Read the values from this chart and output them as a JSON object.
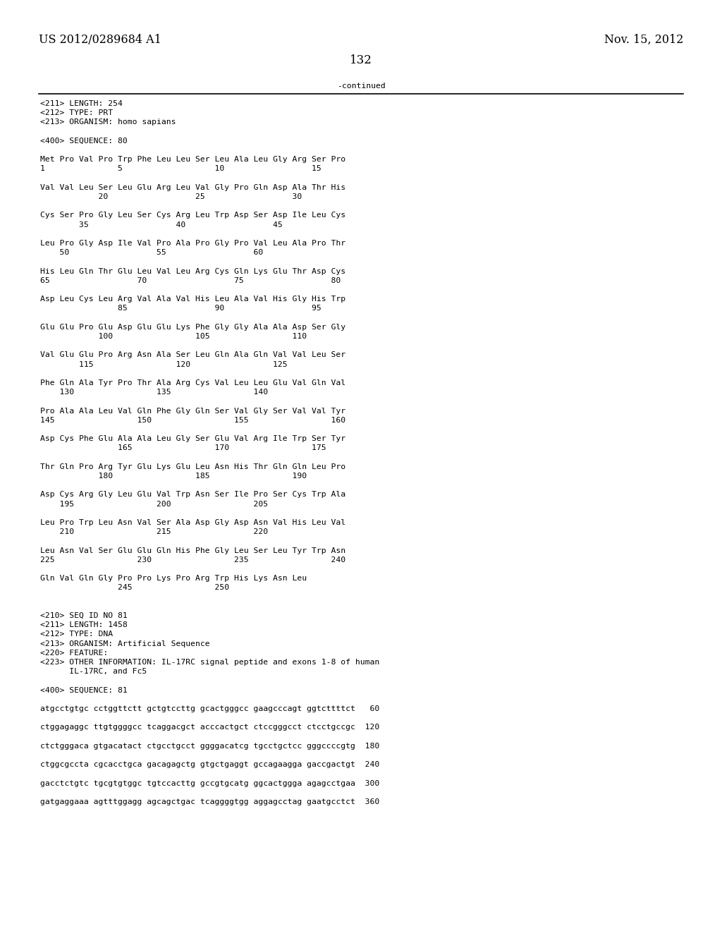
{
  "header_left": "US 2012/0289684 A1",
  "header_right": "Nov. 15, 2012",
  "page_number": "132",
  "continued_text": "-continued",
  "background_color": "#ffffff",
  "text_color": "#000000",
  "font_size_header": 11.5,
  "font_size_body": 8.2,
  "font_size_page": 12,
  "content_lines": [
    "<211> LENGTH: 254",
    "<212> TYPE: PRT",
    "<213> ORGANISM: homo sapians",
    "",
    "<400> SEQUENCE: 80",
    "",
    "Met Pro Val Pro Trp Phe Leu Leu Ser Leu Ala Leu Gly Arg Ser Pro",
    "1               5                   10                  15",
    "",
    "Val Val Leu Ser Leu Glu Arg Leu Val Gly Pro Gln Asp Ala Thr His",
    "            20                  25                  30",
    "",
    "Cys Ser Pro Gly Leu Ser Cys Arg Leu Trp Asp Ser Asp Ile Leu Cys",
    "        35                  40                  45",
    "",
    "Leu Pro Gly Asp Ile Val Pro Ala Pro Gly Pro Val Leu Ala Pro Thr",
    "    50                  55                  60",
    "",
    "His Leu Gln Thr Glu Leu Val Leu Arg Cys Gln Lys Glu Thr Asp Cys",
    "65                  70                  75                  80",
    "",
    "Asp Leu Cys Leu Arg Val Ala Val His Leu Ala Val His Gly His Trp",
    "                85                  90                  95",
    "",
    "Glu Glu Pro Glu Asp Glu Glu Lys Phe Gly Gly Ala Ala Asp Ser Gly",
    "            100                 105                 110",
    "",
    "Val Glu Glu Pro Arg Asn Ala Ser Leu Gln Ala Gln Val Val Leu Ser",
    "        115                 120                 125",
    "",
    "Phe Gln Ala Tyr Pro Thr Ala Arg Cys Val Leu Leu Glu Val Gln Val",
    "    130                 135                 140",
    "",
    "Pro Ala Ala Leu Val Gln Phe Gly Gln Ser Val Gly Ser Val Val Tyr",
    "145                 150                 155                 160",
    "",
    "Asp Cys Phe Glu Ala Ala Leu Gly Ser Glu Val Arg Ile Trp Ser Tyr",
    "                165                 170                 175",
    "",
    "Thr Gln Pro Arg Tyr Glu Lys Glu Leu Asn His Thr Gln Gln Leu Pro",
    "            180                 185                 190",
    "",
    "Asp Cys Arg Gly Leu Glu Val Trp Asn Ser Ile Pro Ser Cys Trp Ala",
    "    195                 200                 205",
    "",
    "Leu Pro Trp Leu Asn Val Ser Ala Asp Gly Asp Asn Val His Leu Val",
    "    210                 215                 220",
    "",
    "Leu Asn Val Ser Glu Glu Gln His Phe Gly Leu Ser Leu Tyr Trp Asn",
    "225                 230                 235                 240",
    "",
    "Gln Val Gln Gly Pro Pro Lys Pro Arg Trp His Lys Asn Leu",
    "                245                 250",
    "",
    "",
    "<210> SEQ ID NO 81",
    "<211> LENGTH: 1458",
    "<212> TYPE: DNA",
    "<213> ORGANISM: Artificial Sequence",
    "<220> FEATURE:",
    "<223> OTHER INFORMATION: IL-17RC signal peptide and exons 1-8 of human",
    "      IL-17RC, and Fc5",
    "",
    "<400> SEQUENCE: 81",
    "",
    "atgcctgtgc cctggttctt gctgtccttg gcactgggcc gaagcccagt ggtcttttct   60",
    "",
    "ctggagaggc ttgtggggcc tcaggacgct acccactgct ctccgggcct ctcctgccgc  120",
    "",
    "ctctgggaca gtgacatact ctgcctgcct ggggacatcg tgcctgctcc gggccccgtg  180",
    "",
    "ctggcgccta cgcacctgca gacagagctg gtgctgaggt gccagaagga gaccgactgt  240",
    "",
    "gacctctgtc tgcgtgtggc tgtccacttg gccgtgcatg ggcactggga agagcctgaa  300",
    "",
    "gatgaggaaa agtttggagg agcagctgac tcaggggtgg aggagcctag gaatgcctct  360"
  ]
}
